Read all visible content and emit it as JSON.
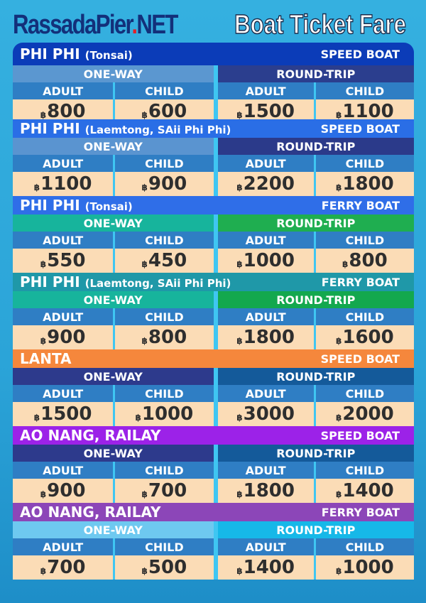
{
  "header": {
    "logo_main": "RassadaPier",
    "logo_dot": ".",
    "logo_tld": "NET",
    "title": "Boat Ticket Fare"
  },
  "labels": {
    "one_way": "ONE-WAY",
    "round_trip": "ROUND-TRIP",
    "adult": "ADULT",
    "child": "CHILD",
    "currency": "฿"
  },
  "sections": [
    {
      "route": "PHI PHI",
      "sub": "(Tonsai)",
      "boat": "SPEED BOAT",
      "one_way": {
        "adult": "800",
        "child": "600"
      },
      "round_trip": {
        "adult": "1500",
        "child": "1100"
      },
      "colors": {
        "title": "#0b3cb8",
        "one_way": "#5b97d0",
        "round_trip": "#2b3e8e"
      }
    },
    {
      "route": "PHI PHI",
      "sub": "(Laemtong, SAii Phi Phi)",
      "boat": "SPEED BOAT",
      "one_way": {
        "adult": "1100",
        "child": "900"
      },
      "round_trip": {
        "adult": "2200",
        "child": "1800"
      },
      "colors": {
        "title": "#2a6ee6",
        "one_way": "#5a94d0",
        "round_trip": "#2b3a8a"
      }
    },
    {
      "route": "PHI PHI",
      "sub": "(Tonsai)",
      "boat": "FERRY BOAT",
      "one_way": {
        "adult": "550",
        "child": "450"
      },
      "round_trip": {
        "adult": "1000",
        "child": "800"
      },
      "colors": {
        "title": "#2f6ee8",
        "one_way": "#17b49c",
        "round_trip": "#1fae50"
      }
    },
    {
      "route": "PHI PHI",
      "sub": "(Laemtong, SAii Phi Phi)",
      "boat": "FERRY BOAT",
      "one_way": {
        "adult": "900",
        "child": "800"
      },
      "round_trip": {
        "adult": "1800",
        "child": "1600"
      },
      "colors": {
        "title": "#1f98a8",
        "one_way": "#17b49c",
        "round_trip": "#13a84e"
      }
    },
    {
      "route": "LANTA",
      "sub": "",
      "boat": "SPEED BOAT",
      "one_way": {
        "adult": "1500",
        "child": "1000"
      },
      "round_trip": {
        "adult": "3000",
        "child": "2000"
      },
      "colors": {
        "title": "#f5873c",
        "one_way": "#2d3a8c",
        "round_trip": "#145a9a"
      }
    },
    {
      "route": "AO NANG, RAILAY",
      "sub": "",
      "boat": "SPEED BOAT",
      "one_way": {
        "adult": "900",
        "child": "700"
      },
      "round_trip": {
        "adult": "1800",
        "child": "1400"
      },
      "colors": {
        "title": "#9c22e8",
        "one_way": "#2d3a8c",
        "round_trip": "#145a9a"
      }
    },
    {
      "route": "AO NANG, RAILAY",
      "sub": "",
      "boat": "FERRY BOAT",
      "one_way": {
        "adult": "700",
        "child": "500"
      },
      "round_trip": {
        "adult": "1400",
        "child": "1000"
      },
      "colors": {
        "title": "#8c46b8",
        "one_way": "#6ec9f0",
        "round_trip": "#16b8e8"
      }
    }
  ]
}
